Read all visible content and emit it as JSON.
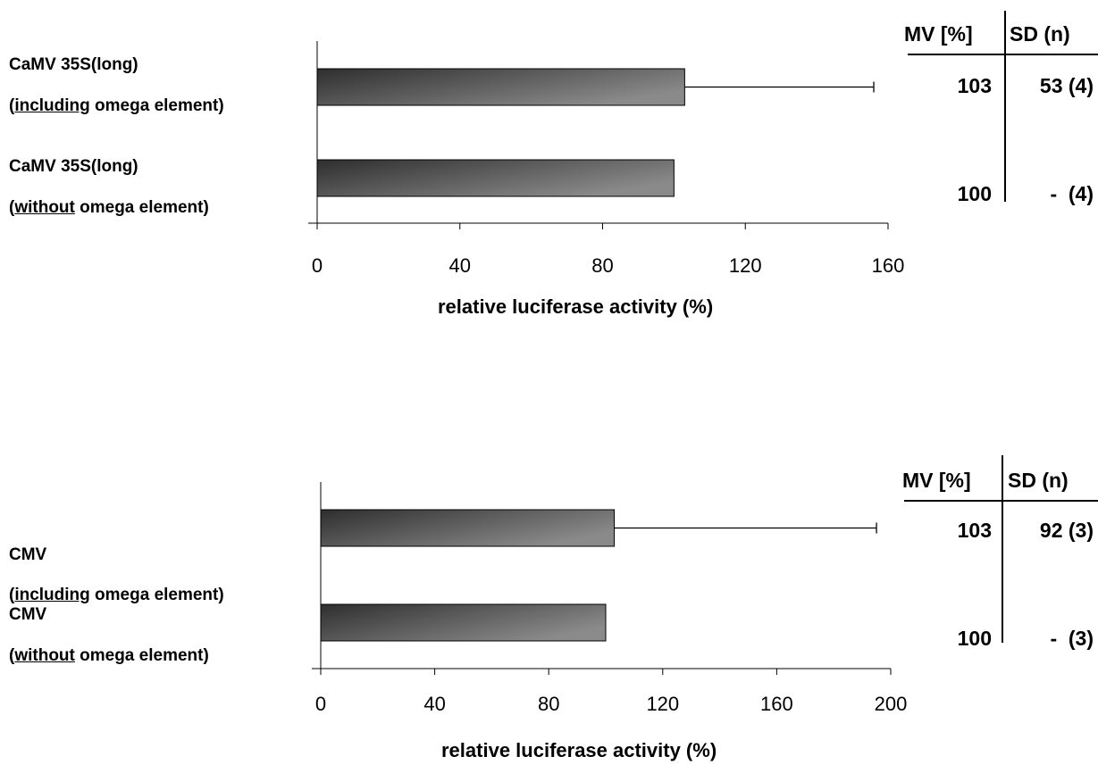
{
  "chart_data": [
    {
      "type": "bar",
      "orientation": "horizontal",
      "categories": [
        {
          "line1": "CaMV 35S(long)",
          "prefix": "(",
          "underlined": "including",
          "suffix": " omega element)"
        },
        {
          "line1": "CaMV 35S(long)",
          "prefix": "(",
          "underlined": "without",
          "suffix": " omega element)"
        }
      ],
      "values": [
        103,
        100
      ],
      "error": [
        53,
        null
      ],
      "xlabel": "relative luciferase activity (%)",
      "xlim": [
        0,
        160
      ],
      "xticks": [
        0,
        40,
        80,
        120,
        160
      ],
      "table": {
        "headers": [
          "MV [%]",
          "SD (n)"
        ],
        "rows": [
          [
            "103",
            "53 (4)"
          ],
          [
            "100",
            "-  (4)"
          ]
        ]
      },
      "bar_color": "#555555",
      "grid": false
    },
    {
      "type": "bar",
      "orientation": "horizontal",
      "categories": [
        {
          "line1": "CMV",
          "prefix": "(",
          "underlined": "including",
          "suffix": " omega element)"
        },
        {
          "line1": "CMV",
          "prefix": "(",
          "underlined": "without",
          "suffix": " omega element)"
        }
      ],
      "values": [
        103,
        100
      ],
      "error": [
        92,
        null
      ],
      "xlabel": "relative luciferase activity (%)",
      "xlim": [
        0,
        200
      ],
      "xticks": [
        0,
        40,
        80,
        120,
        160,
        200
      ],
      "table": {
        "headers": [
          "MV [%]",
          "SD (n)"
        ],
        "rows": [
          [
            "103",
            "92 (3)"
          ],
          [
            "100",
            "-  (3)"
          ]
        ]
      },
      "bar_color": "#555555",
      "grid": false
    }
  ]
}
